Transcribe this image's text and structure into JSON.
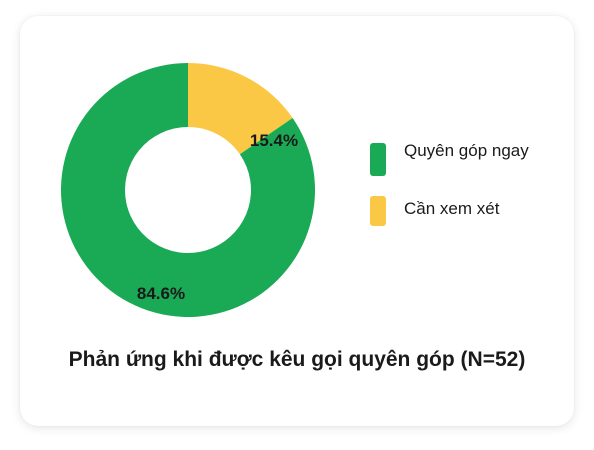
{
  "chart_data": {
    "type": "pie",
    "donut": true,
    "title": "Phản ứng khi được kêu gọi quyên góp (N=52)",
    "categories": [
      "Quyên góp ngay",
      "Cần xem xét"
    ],
    "values": [
      84.6,
      15.4
    ],
    "data_labels": [
      "84.6%",
      "15.4%"
    ],
    "colors": [
      "#1aaa55",
      "#fbc845"
    ],
    "legend_position": "right"
  }
}
